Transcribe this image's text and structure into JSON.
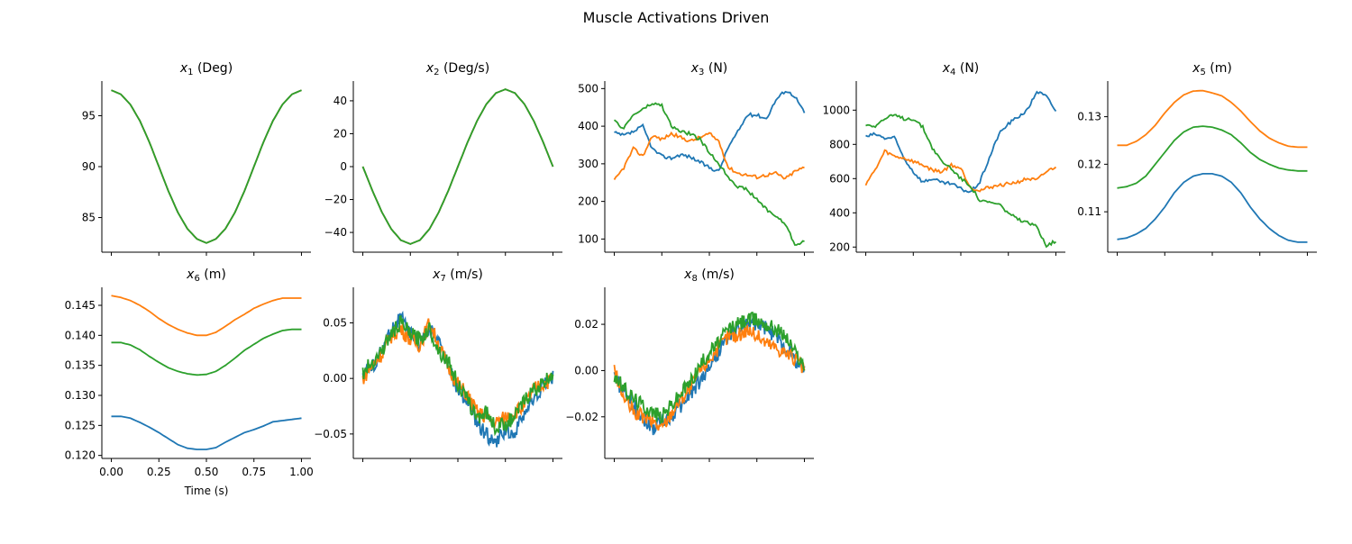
{
  "figure": {
    "suptitle": "Muscle Activations Driven",
    "series_colors": [
      "#1f77b4",
      "#ff7f0e",
      "#2ca02c"
    ]
  },
  "chart_data": [
    {
      "type": "line",
      "title_var": "x",
      "title_sub": "1",
      "title_unit": "(Deg)",
      "x": [
        0.0,
        0.05,
        0.1,
        0.15,
        0.2,
        0.25,
        0.3,
        0.35,
        0.4,
        0.45,
        0.5,
        0.55,
        0.6,
        0.65,
        0.7,
        0.75,
        0.8,
        0.85,
        0.9,
        0.95,
        1.0
      ],
      "xlim": [
        -0.05,
        1.05
      ],
      "xticks": [
        0,
        0.25,
        0.5,
        0.75,
        1.0
      ],
      "ylim": [
        81.6,
        98.4
      ],
      "yticks": [
        85,
        90,
        95
      ],
      "yticklabels": [
        "85",
        "90",
        "95"
      ],
      "series": [
        {
          "values": [
            97.5,
            97.1,
            96.1,
            94.5,
            92.4,
            90.0,
            87.6,
            85.5,
            83.9,
            82.9,
            82.5,
            82.9,
            83.9,
            85.5,
            87.6,
            90.0,
            92.4,
            94.5,
            96.1,
            97.1,
            97.5
          ]
        },
        {
          "values": [
            97.5,
            97.1,
            96.1,
            94.5,
            92.4,
            90.0,
            87.6,
            85.5,
            83.9,
            82.9,
            82.5,
            82.9,
            83.9,
            85.5,
            87.6,
            90.0,
            92.4,
            94.5,
            96.1,
            97.1,
            97.5
          ]
        },
        {
          "values": [
            97.5,
            97.1,
            96.1,
            94.5,
            92.4,
            90.0,
            87.6,
            85.5,
            83.9,
            82.9,
            82.5,
            82.9,
            83.9,
            85.5,
            87.6,
            90.0,
            92.4,
            94.5,
            96.1,
            97.1,
            97.5
          ]
        }
      ]
    },
    {
      "type": "line",
      "title_var": "x",
      "title_sub": "2",
      "title_unit": "(Deg/s)",
      "x": [
        0.0,
        0.05,
        0.1,
        0.15,
        0.2,
        0.25,
        0.3,
        0.35,
        0.4,
        0.45,
        0.5,
        0.55,
        0.6,
        0.65,
        0.7,
        0.75,
        0.8,
        0.85,
        0.9,
        0.95,
        1.0
      ],
      "xlim": [
        -0.05,
        1.05
      ],
      "xticks": [
        0,
        0.25,
        0.5,
        0.75,
        1.0
      ],
      "ylim": [
        -52,
        52
      ],
      "yticks": [
        -40,
        -20,
        0,
        20,
        40
      ],
      "yticklabels": [
        "−40",
        "−20",
        "0",
        "20",
        "40"
      ],
      "series": [
        {
          "values": [
            0,
            -14.5,
            -27.6,
            -38.0,
            -44.7,
            -47.0,
            -44.7,
            -38.0,
            -27.6,
            -14.5,
            0,
            14.5,
            27.6,
            38.0,
            44.7,
            47.0,
            44.7,
            38.0,
            27.6,
            14.5,
            0
          ]
        },
        {
          "values": [
            0,
            -14.5,
            -27.6,
            -38.0,
            -44.7,
            -47.0,
            -44.7,
            -38.0,
            -27.6,
            -14.5,
            0,
            14.5,
            27.6,
            38.0,
            44.7,
            47.0,
            44.7,
            38.0,
            27.6,
            14.5,
            0
          ]
        },
        {
          "values": [
            0,
            -14.5,
            -27.6,
            -38.0,
            -44.7,
            -47.0,
            -44.7,
            -38.0,
            -27.6,
            -14.5,
            0,
            14.5,
            27.6,
            38.0,
            44.7,
            47.0,
            44.7,
            38.0,
            27.6,
            14.5,
            0
          ]
        }
      ]
    },
    {
      "type": "line",
      "title_var": "x",
      "title_sub": "3",
      "title_unit": "(N)",
      "x": [
        0.0,
        0.05,
        0.1,
        0.15,
        0.2,
        0.25,
        0.3,
        0.35,
        0.4,
        0.45,
        0.5,
        0.55,
        0.6,
        0.65,
        0.7,
        0.75,
        0.8,
        0.85,
        0.9,
        0.95,
        1.0
      ],
      "xlim": [
        -0.05,
        1.05
      ],
      "xticks": [
        0,
        0.25,
        0.5,
        0.75,
        1.0
      ],
      "ylim": [
        65,
        520
      ],
      "yticks": [
        100,
        200,
        300,
        400,
        500
      ],
      "yticklabels": [
        "100",
        "200",
        "300",
        "400",
        "500"
      ],
      "series": [
        {
          "values": [
            382,
            375,
            385,
            400,
            340,
            320,
            315,
            325,
            318,
            305,
            290,
            280,
            345,
            385,
            430,
            430,
            420,
            470,
            495,
            480,
            435
          ]
        },
        {
          "values": [
            255,
            290,
            340,
            320,
            375,
            365,
            380,
            370,
            360,
            370,
            380,
            360,
            290,
            275,
            270,
            265,
            270,
            275,
            260,
            280,
            290
          ]
        },
        {
          "values": [
            412,
            395,
            430,
            445,
            460,
            455,
            400,
            385,
            380,
            365,
            330,
            300,
            265,
            240,
            230,
            205,
            180,
            160,
            140,
            85,
            95
          ]
        }
      ]
    },
    {
      "type": "line",
      "title_var": "x",
      "title_sub": "4",
      "title_unit": "(N)",
      "x": [
        0.0,
        0.05,
        0.1,
        0.15,
        0.2,
        0.25,
        0.3,
        0.35,
        0.4,
        0.45,
        0.5,
        0.55,
        0.6,
        0.65,
        0.7,
        0.75,
        0.8,
        0.85,
        0.9,
        0.95,
        1.0
      ],
      "xlim": [
        -0.05,
        1.05
      ],
      "xticks": [
        0,
        0.25,
        0.5,
        0.75,
        1.0
      ],
      "ylim": [
        170,
        1170
      ],
      "yticks": [
        200,
        400,
        600,
        800,
        1000
      ],
      "yticklabels": [
        "200",
        "400",
        "600",
        "800",
        "1000"
      ],
      "series": [
        {
          "values": [
            845,
            860,
            835,
            840,
            720,
            640,
            580,
            600,
            575,
            570,
            540,
            520,
            580,
            720,
            860,
            920,
            960,
            1000,
            1110,
            1080,
            995
          ]
        },
        {
          "values": [
            570,
            650,
            760,
            730,
            720,
            700,
            680,
            650,
            640,
            680,
            660,
            550,
            530,
            550,
            560,
            570,
            580,
            600,
            590,
            640,
            670
          ]
        },
        {
          "values": [
            915,
            910,
            950,
            970,
            950,
            950,
            900,
            780,
            700,
            660,
            600,
            560,
            470,
            460,
            450,
            400,
            360,
            340,
            320,
            210,
            235
          ]
        }
      ]
    },
    {
      "type": "line",
      "title_var": "x",
      "title_sub": "5",
      "title_unit": "(m)",
      "x": [
        0.0,
        0.05,
        0.1,
        0.15,
        0.2,
        0.25,
        0.3,
        0.35,
        0.4,
        0.45,
        0.5,
        0.55,
        0.6,
        0.65,
        0.7,
        0.75,
        0.8,
        0.85,
        0.9,
        0.95,
        1.0
      ],
      "xlim": [
        -0.05,
        1.05
      ],
      "xticks": [
        0,
        0.25,
        0.5,
        0.75,
        1.0
      ],
      "ylim": [
        0.1015,
        0.1375
      ],
      "yticks": [
        0.11,
        0.12,
        0.13
      ],
      "yticklabels": [
        "0.11",
        "0.12",
        "0.13"
      ],
      "series": [
        {
          "values": [
            0.1042,
            0.1045,
            0.1053,
            0.1065,
            0.1085,
            0.111,
            0.114,
            0.1162,
            0.1175,
            0.118,
            0.118,
            0.1175,
            0.1162,
            0.114,
            0.111,
            0.1085,
            0.1065,
            0.105,
            0.104,
            0.1036,
            0.1036
          ]
        },
        {
          "values": [
            0.124,
            0.124,
            0.1248,
            0.1262,
            0.1282,
            0.1308,
            0.133,
            0.1346,
            0.1354,
            0.1355,
            0.135,
            0.1344,
            0.133,
            0.1312,
            0.129,
            0.127,
            0.1255,
            0.1245,
            0.1238,
            0.1236,
            0.1236
          ]
        },
        {
          "values": [
            0.115,
            0.1153,
            0.116,
            0.1175,
            0.12,
            0.1225,
            0.125,
            0.1268,
            0.1278,
            0.128,
            0.1278,
            0.1272,
            0.1262,
            0.1245,
            0.1225,
            0.121,
            0.12,
            0.1192,
            0.1188,
            0.1186,
            0.1186
          ]
        }
      ]
    },
    {
      "type": "line",
      "title_var": "x",
      "title_sub": "6",
      "title_unit": "(m)",
      "x": [
        0.0,
        0.05,
        0.1,
        0.15,
        0.2,
        0.25,
        0.3,
        0.35,
        0.4,
        0.45,
        0.5,
        0.55,
        0.6,
        0.65,
        0.7,
        0.75,
        0.8,
        0.85,
        0.9,
        0.95,
        1.0
      ],
      "xlim": [
        -0.05,
        1.05
      ],
      "xticks": [
        0,
        0.25,
        0.5,
        0.75,
        1.0
      ],
      "xticklabels": [
        "0.00",
        "0.25",
        "0.50",
        "0.75",
        "1.00"
      ],
      "xlabel": "Time (s)",
      "ylim": [
        0.1195,
        0.148
      ],
      "yticks": [
        0.12,
        0.125,
        0.13,
        0.135,
        0.14,
        0.145
      ],
      "yticklabels": [
        "0.120",
        "0.125",
        "0.130",
        "0.135",
        "0.140",
        "0.145"
      ],
      "series": [
        {
          "values": [
            0.1265,
            0.1265,
            0.1262,
            0.1255,
            0.1247,
            0.1238,
            0.1228,
            0.1218,
            0.1212,
            0.121,
            0.121,
            0.1213,
            0.1222,
            0.123,
            0.1238,
            0.1243,
            0.1249,
            0.1256,
            0.1258,
            0.126,
            0.1262
          ]
        },
        {
          "values": [
            0.1466,
            0.1463,
            0.1458,
            0.145,
            0.144,
            0.1428,
            0.1418,
            0.141,
            0.1404,
            0.14,
            0.14,
            0.1405,
            0.1415,
            0.1426,
            0.1435,
            0.1445,
            0.1452,
            0.1458,
            0.1462,
            0.1462,
            0.1462
          ]
        },
        {
          "values": [
            0.1388,
            0.1388,
            0.1384,
            0.1376,
            0.1365,
            0.1355,
            0.1346,
            0.134,
            0.1336,
            0.1334,
            0.1335,
            0.134,
            0.135,
            0.1362,
            0.1375,
            0.1385,
            0.1395,
            0.1402,
            0.1408,
            0.141,
            0.141
          ]
        }
      ]
    },
    {
      "type": "line",
      "title_var": "x",
      "title_sub": "7",
      "title_unit": "(m/s)",
      "x": [
        0.0,
        0.05,
        0.1,
        0.15,
        0.2,
        0.25,
        0.3,
        0.35,
        0.4,
        0.45,
        0.5,
        0.55,
        0.6,
        0.65,
        0.7,
        0.75,
        0.8,
        0.85,
        0.9,
        0.95,
        1.0
      ],
      "xlim": [
        -0.05,
        1.05
      ],
      "xticks": [
        0,
        0.25,
        0.5,
        0.75,
        1.0
      ],
      "ylim": [
        -0.072,
        0.082
      ],
      "yticks": [
        -0.05,
        0.0,
        0.05
      ],
      "yticklabels": [
        "−0.05",
        "0.00",
        "0.05"
      ],
      "series": [
        {
          "values": [
            0.005,
            0.01,
            0.025,
            0.045,
            0.055,
            0.04,
            0.03,
            0.045,
            0.035,
            0.01,
            -0.01,
            -0.02,
            -0.04,
            -0.05,
            -0.06,
            -0.045,
            -0.05,
            -0.03,
            -0.02,
            -0.005,
            0.0
          ]
        },
        {
          "values": [
            0.0,
            0.012,
            0.022,
            0.038,
            0.045,
            0.035,
            0.03,
            0.05,
            0.03,
            0.01,
            -0.005,
            -0.015,
            -0.03,
            -0.035,
            -0.04,
            -0.035,
            -0.03,
            -0.025,
            -0.01,
            -0.005,
            0.0
          ]
        },
        {
          "values": [
            0.005,
            0.015,
            0.025,
            0.04,
            0.05,
            0.04,
            0.035,
            0.045,
            0.025,
            0.015,
            -0.005,
            -0.02,
            -0.035,
            -0.03,
            -0.045,
            -0.04,
            -0.035,
            -0.02,
            -0.01,
            -0.005,
            0.005
          ]
        }
      ]
    },
    {
      "type": "line",
      "title_var": "x",
      "title_sub": "8",
      "title_unit": "(m/s)",
      "x": [
        0.0,
        0.05,
        0.1,
        0.15,
        0.2,
        0.25,
        0.3,
        0.35,
        0.4,
        0.45,
        0.5,
        0.55,
        0.6,
        0.65,
        0.7,
        0.75,
        0.8,
        0.85,
        0.9,
        0.95,
        1.0
      ],
      "xlim": [
        -0.05,
        1.05
      ],
      "xticks": [
        0,
        0.25,
        0.5,
        0.75,
        1.0
      ],
      "ylim": [
        -0.038,
        0.036
      ],
      "yticks": [
        -0.02,
        0.0,
        0.02
      ],
      "yticklabels": [
        "−0.02",
        "0.00",
        "0.02"
      ],
      "series": [
        {
          "values": [
            -0.002,
            -0.01,
            -0.015,
            -0.02,
            -0.025,
            -0.022,
            -0.02,
            -0.015,
            -0.01,
            -0.005,
            0.002,
            0.008,
            0.015,
            0.018,
            0.02,
            0.02,
            0.018,
            0.015,
            0.01,
            0.005,
            0.0
          ]
        },
        {
          "values": [
            0.0,
            -0.012,
            -0.018,
            -0.02,
            -0.022,
            -0.025,
            -0.018,
            -0.012,
            -0.008,
            0.0,
            0.005,
            0.01,
            0.015,
            0.015,
            0.018,
            0.015,
            0.012,
            0.01,
            0.008,
            0.005,
            0.0
          ]
        },
        {
          "values": [
            -0.002,
            -0.008,
            -0.012,
            -0.015,
            -0.018,
            -0.02,
            -0.015,
            -0.01,
            -0.005,
            0.002,
            0.008,
            0.012,
            0.018,
            0.02,
            0.022,
            0.022,
            0.02,
            0.018,
            0.015,
            0.008,
            0.002
          ]
        }
      ]
    }
  ]
}
